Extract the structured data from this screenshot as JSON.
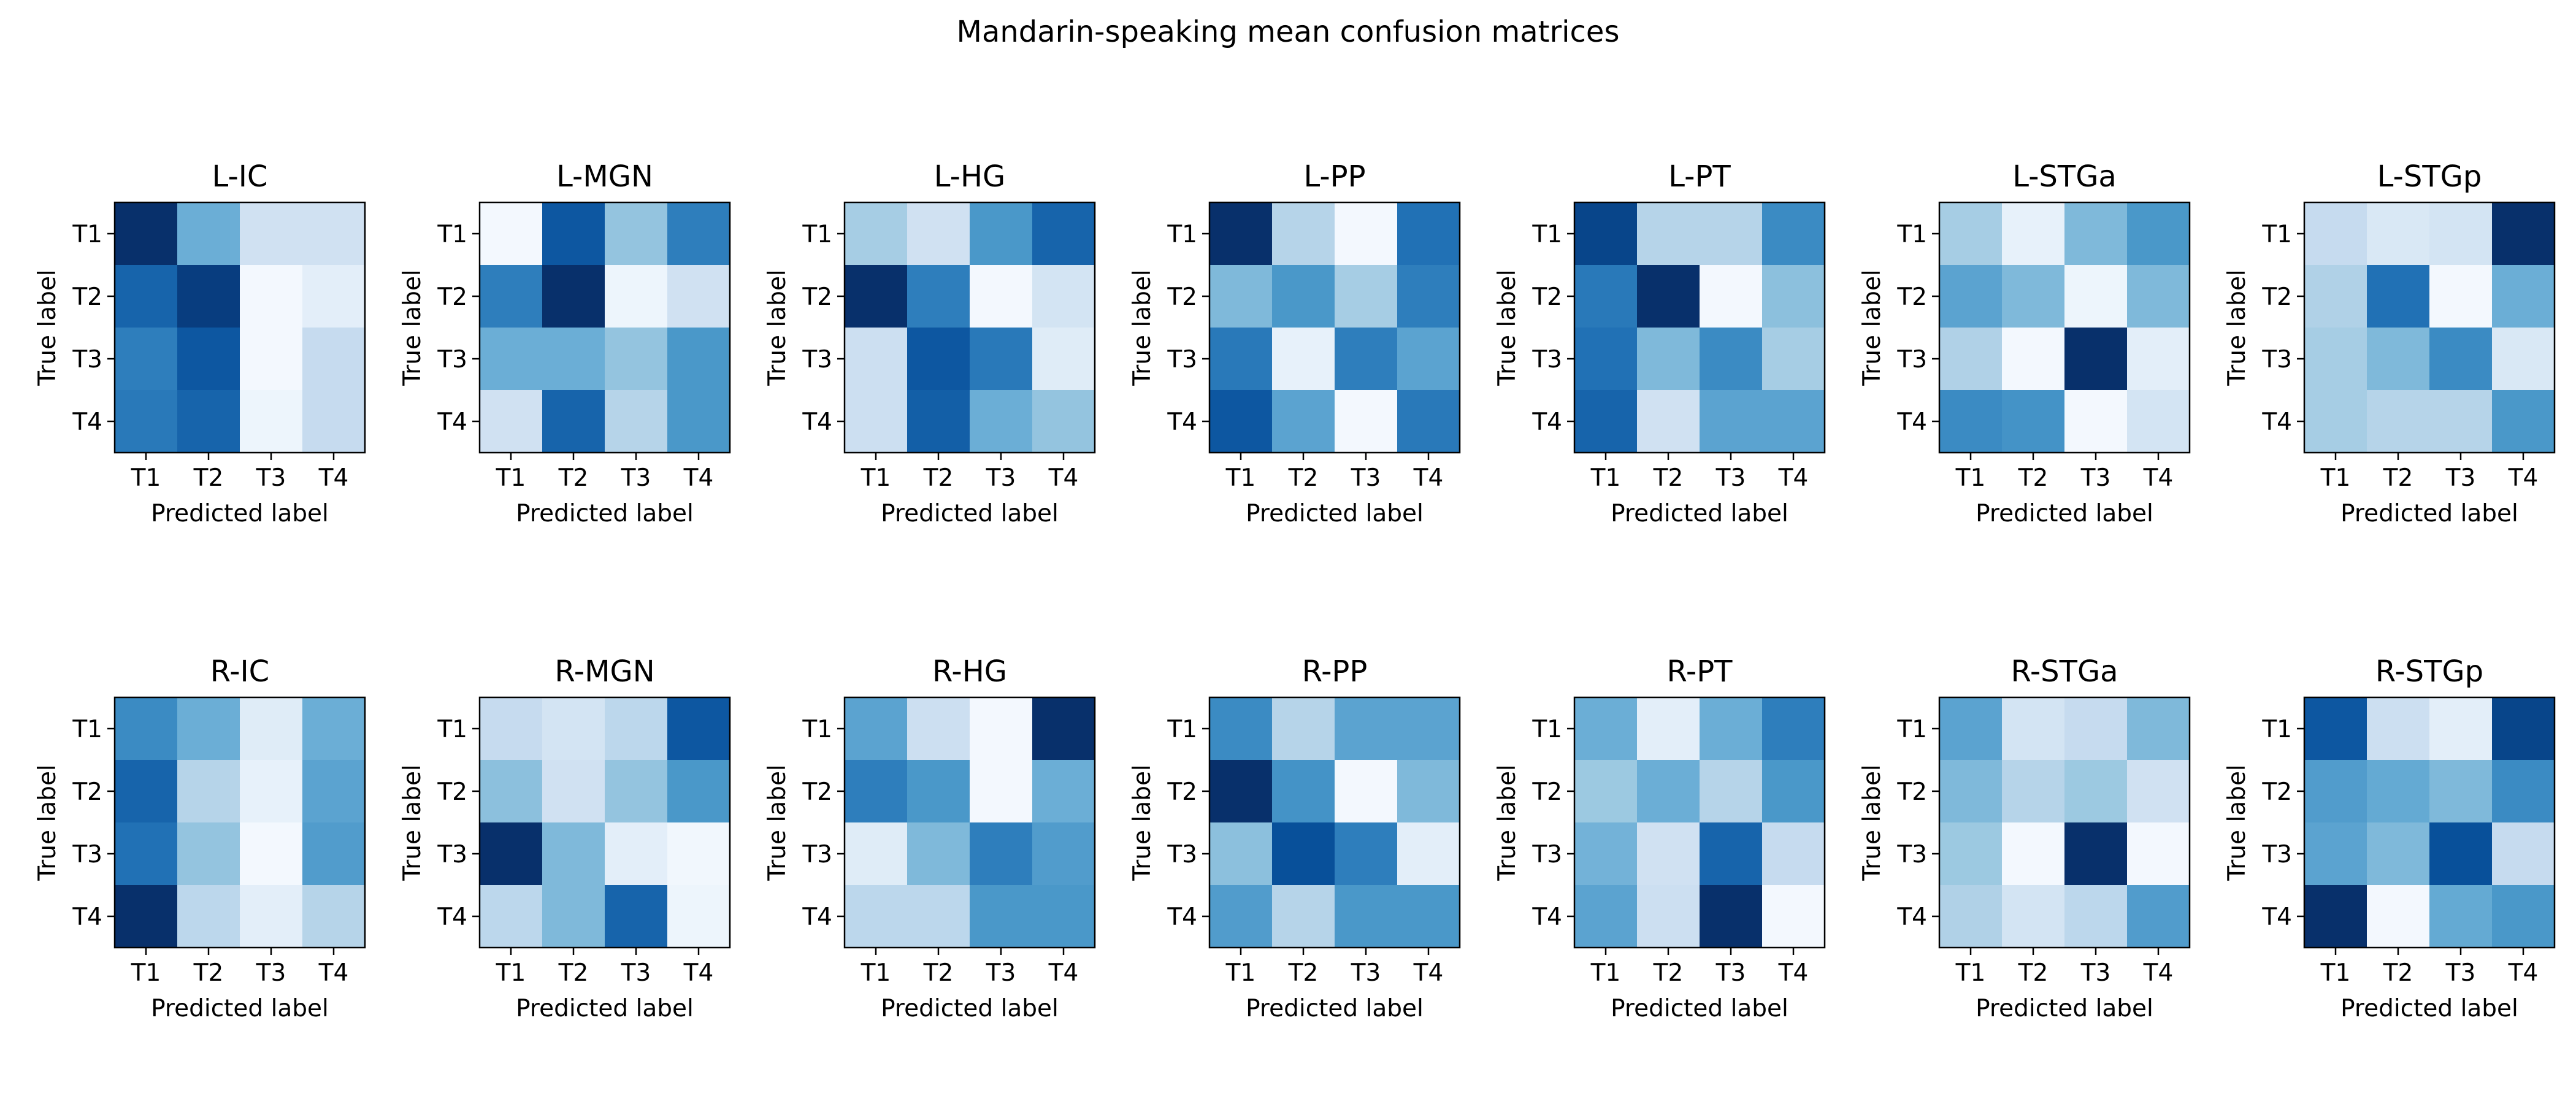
{
  "figure_title": "Mandarin-speaking mean confusion matrices",
  "chart_data": {
    "type": "heatmap",
    "colormap": "Blues",
    "title": "Mandarin-speaking mean confusion matrices",
    "xlabel": "Predicted label",
    "ylabel": "True label",
    "tick_labels": [
      "T1",
      "T2",
      "T3",
      "T4"
    ],
    "panels": [
      {
        "name": "L-IC",
        "matrix": [
          [
            1.0,
            0.5,
            0.2,
            0.2
          ],
          [
            0.8,
            0.95,
            0.02,
            0.1
          ],
          [
            0.7,
            0.85,
            0.02,
            0.25
          ],
          [
            0.72,
            0.8,
            0.05,
            0.25
          ]
        ]
      },
      {
        "name": "L-MGN",
        "matrix": [
          [
            0.02,
            0.85,
            0.4,
            0.7
          ],
          [
            0.7,
            1.0,
            0.05,
            0.2
          ],
          [
            0.5,
            0.5,
            0.4,
            0.6
          ],
          [
            0.2,
            0.8,
            0.3,
            0.6
          ]
        ]
      },
      {
        "name": "L-HG",
        "matrix": [
          [
            0.35,
            0.2,
            0.6,
            0.8
          ],
          [
            1.0,
            0.7,
            0.02,
            0.18
          ],
          [
            0.22,
            0.85,
            0.72,
            0.12
          ],
          [
            0.22,
            0.82,
            0.5,
            0.4
          ]
        ]
      },
      {
        "name": "L-PP",
        "matrix": [
          [
            1.0,
            0.3,
            0.02,
            0.75
          ],
          [
            0.45,
            0.6,
            0.35,
            0.7
          ],
          [
            0.72,
            0.08,
            0.7,
            0.55
          ],
          [
            0.85,
            0.55,
            0.02,
            0.72
          ]
        ]
      },
      {
        "name": "L-PT",
        "matrix": [
          [
            0.92,
            0.3,
            0.3,
            0.65
          ],
          [
            0.72,
            1.0,
            0.02,
            0.42
          ],
          [
            0.75,
            0.45,
            0.65,
            0.35
          ],
          [
            0.8,
            0.2,
            0.55,
            0.55
          ]
        ]
      },
      {
        "name": "L-STGa",
        "matrix": [
          [
            0.35,
            0.08,
            0.45,
            0.6
          ],
          [
            0.55,
            0.45,
            0.05,
            0.45
          ],
          [
            0.32,
            0.02,
            1.0,
            0.1
          ],
          [
            0.65,
            0.62,
            0.02,
            0.18
          ]
        ]
      },
      {
        "name": "L-STGp",
        "matrix": [
          [
            0.25,
            0.15,
            0.18,
            1.0
          ],
          [
            0.32,
            0.75,
            0.02,
            0.5
          ],
          [
            0.35,
            0.45,
            0.65,
            0.15
          ],
          [
            0.35,
            0.3,
            0.3,
            0.6
          ]
        ]
      },
      {
        "name": "R-IC",
        "matrix": [
          [
            0.65,
            0.5,
            0.12,
            0.5
          ],
          [
            0.8,
            0.3,
            0.08,
            0.55
          ],
          [
            0.75,
            0.4,
            0.02,
            0.58
          ],
          [
            1.0,
            0.28,
            0.1,
            0.3
          ]
        ]
      },
      {
        "name": "R-MGN",
        "matrix": [
          [
            0.25,
            0.18,
            0.28,
            0.85
          ],
          [
            0.42,
            0.2,
            0.4,
            0.6
          ],
          [
            1.0,
            0.45,
            0.1,
            0.03
          ],
          [
            0.28,
            0.45,
            0.8,
            0.05
          ]
        ]
      },
      {
        "name": "R-HG",
        "matrix": [
          [
            0.55,
            0.22,
            0.02,
            1.0
          ],
          [
            0.7,
            0.6,
            0.02,
            0.5
          ],
          [
            0.12,
            0.45,
            0.7,
            0.58
          ],
          [
            0.28,
            0.28,
            0.6,
            0.6
          ]
        ]
      },
      {
        "name": "R-PP",
        "matrix": [
          [
            0.65,
            0.3,
            0.55,
            0.55
          ],
          [
            1.0,
            0.62,
            0.02,
            0.45
          ],
          [
            0.42,
            0.88,
            0.7,
            0.1
          ],
          [
            0.58,
            0.3,
            0.6,
            0.6
          ]
        ]
      },
      {
        "name": "R-PT",
        "matrix": [
          [
            0.5,
            0.1,
            0.5,
            0.7
          ],
          [
            0.38,
            0.5,
            0.3,
            0.6
          ],
          [
            0.48,
            0.2,
            0.8,
            0.25
          ],
          [
            0.55,
            0.22,
            1.0,
            0.02
          ]
        ]
      },
      {
        "name": "R-STGa",
        "matrix": [
          [
            0.55,
            0.18,
            0.25,
            0.45
          ],
          [
            0.45,
            0.3,
            0.38,
            0.2
          ],
          [
            0.38,
            0.02,
            1.0,
            0.02
          ],
          [
            0.32,
            0.18,
            0.28,
            0.58
          ]
        ]
      },
      {
        "name": "R-STGp",
        "matrix": [
          [
            0.85,
            0.22,
            0.1,
            0.92
          ],
          [
            0.58,
            0.52,
            0.45,
            0.65
          ],
          [
            0.55,
            0.45,
            0.88,
            0.25
          ],
          [
            1.0,
            0.02,
            0.52,
            0.6
          ]
        ]
      }
    ],
    "grid": false,
    "legend": "none"
  }
}
